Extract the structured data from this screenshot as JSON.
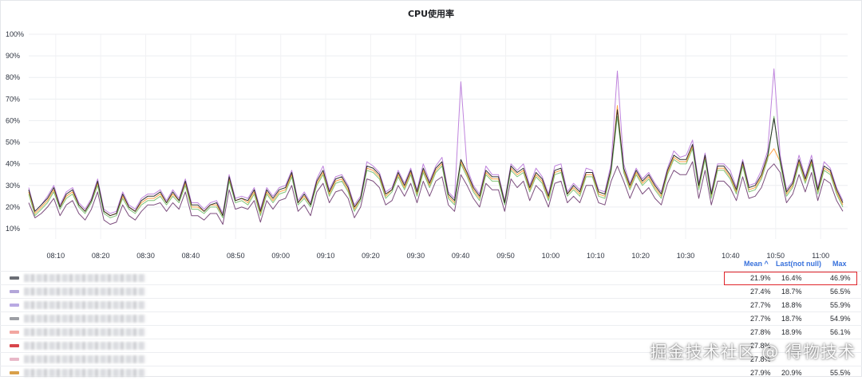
{
  "chart_data": {
    "type": "line",
    "title": "CPU使用率",
    "ylim": [
      8,
      100
    ],
    "yticks": [
      "10%",
      "20%",
      "30%",
      "40%",
      "50%",
      "60%",
      "70%",
      "80%",
      "90%",
      "100%"
    ],
    "yticks_values": [
      10,
      20,
      30,
      40,
      50,
      60,
      70,
      80,
      90,
      100
    ],
    "x_range": [
      "08:04",
      "11:06"
    ],
    "xticks": [
      "08:10",
      "08:20",
      "08:30",
      "08:40",
      "08:50",
      "09:00",
      "09:10",
      "09:20",
      "09:30",
      "09:40",
      "09:50",
      "10:00",
      "10:10",
      "10:20",
      "10:30",
      "10:40",
      "10:50",
      "11:00"
    ],
    "grid": true,
    "legend_placement": "bottom",
    "series_colors": [
      "#73bf69",
      "#5794f2",
      "#b877d9",
      "#ff9830",
      "#f2cc0c",
      "#8ab8ff",
      "#fade2a",
      "#37872d",
      "#c4162a",
      "#e0752d",
      "#1f60c4",
      "#8f3bb8",
      "#fa6400",
      "#a16d52",
      "#6e3b70",
      "#1e1e1e"
    ],
    "series": [
      {
        "color": "#6e3b70",
        "values": [
          22,
          15,
          17,
          20,
          24,
          16,
          21,
          23,
          17,
          14,
          19,
          27,
          14,
          12,
          13,
          21,
          16,
          14,
          18,
          21,
          21,
          22,
          18,
          22,
          19,
          27,
          16,
          16,
          14,
          17,
          17,
          12,
          28,
          19,
          20,
          19,
          23,
          13,
          23,
          19,
          23,
          24,
          30,
          18,
          21,
          16,
          27,
          31,
          22,
          27,
          28,
          24,
          15,
          20,
          33,
          32,
          29,
          21,
          23,
          30,
          25,
          31,
          22,
          32,
          25,
          32,
          34,
          21,
          18,
          35,
          30,
          24,
          20,
          31,
          28,
          28,
          18,
          33,
          29,
          32,
          23,
          30,
          27,
          20,
          31,
          32,
          22,
          25,
          22,
          30,
          30,
          22,
          21,
          32,
          39,
          32,
          24,
          31,
          26,
          29,
          24,
          21,
          31,
          37,
          35,
          35,
          41,
          24,
          37,
          21,
          32,
          32,
          29,
          23,
          34,
          24,
          25,
          29,
          37,
          40,
          36,
          22,
          26,
          35,
          27,
          36,
          23,
          33,
          31,
          23,
          18
        ]
      },
      {
        "color": "#b877d9",
        "values": [
          29,
          18,
          21,
          25,
          30,
          21,
          27,
          29,
          22,
          19,
          24,
          33,
          19,
          17,
          18,
          27,
          21,
          19,
          24,
          26,
          26,
          28,
          23,
          28,
          24,
          33,
          22,
          22,
          19,
          22,
          23,
          17,
          35,
          24,
          25,
          24,
          29,
          19,
          29,
          25,
          29,
          30,
          37,
          23,
          27,
          22,
          33,
          39,
          28,
          34,
          35,
          30,
          21,
          25,
          41,
          39,
          36,
          27,
          29,
          37,
          31,
          38,
          28,
          40,
          32,
          39,
          43,
          27,
          24,
          78,
          38,
          30,
          26,
          39,
          35,
          35,
          23,
          40,
          37,
          40,
          30,
          38,
          34,
          26,
          39,
          40,
          27,
          31,
          28,
          38,
          37,
          28,
          27,
          40,
          83,
          40,
          31,
          38,
          33,
          36,
          31,
          27,
          38,
          46,
          43,
          44,
          51,
          31,
          45,
          27,
          40,
          40,
          37,
          29,
          42,
          30,
          31,
          37,
          46,
          84,
          44,
          28,
          32,
          44,
          34,
          44,
          29,
          41,
          38,
          29,
          23
        ]
      },
      {
        "color": "#ff9830",
        "values": [
          27,
          17,
          20,
          23,
          28,
          20,
          25,
          27,
          21,
          18,
          23,
          31,
          18,
          16,
          17,
          25,
          20,
          18,
          22,
          24,
          24,
          26,
          22,
          26,
          23,
          31,
          20,
          20,
          18,
          21,
          21,
          16,
          33,
          23,
          24,
          22,
          27,
          17,
          27,
          23,
          27,
          28,
          35,
          22,
          25,
          21,
          31,
          36,
          26,
          32,
          33,
          28,
          19,
          24,
          38,
          37,
          34,
          25,
          28,
          35,
          29,
          36,
          26,
          37,
          30,
          37,
          40,
          25,
          22,
          41,
          35,
          28,
          24,
          36,
          33,
          33,
          22,
          38,
          35,
          37,
          28,
          35,
          32,
          24,
          36,
          37,
          26,
          29,
          26,
          35,
          35,
          26,
          25,
          37,
          67,
          37,
          29,
          36,
          31,
          34,
          29,
          25,
          36,
          43,
          41,
          41,
          48,
          29,
          43,
          25,
          38,
          38,
          34,
          27,
          40,
          28,
          29,
          34,
          43,
          47,
          41,
          26,
          30,
          41,
          32,
          41,
          27,
          38,
          36,
          27,
          21
        ]
      },
      {
        "color": "#73bf69",
        "values": [
          26,
          16,
          19,
          22,
          27,
          19,
          24,
          26,
          20,
          17,
          22,
          30,
          17,
          15,
          16,
          24,
          19,
          17,
          21,
          23,
          23,
          25,
          21,
          25,
          22,
          30,
          19,
          19,
          17,
          20,
          20,
          15,
          32,
          22,
          23,
          21,
          26,
          16,
          26,
          22,
          26,
          27,
          34,
          21,
          24,
          20,
          30,
          35,
          25,
          31,
          32,
          27,
          18,
          23,
          37,
          36,
          33,
          24,
          27,
          34,
          28,
          35,
          25,
          36,
          29,
          36,
          39,
          24,
          21,
          40,
          34,
          27,
          23,
          35,
          32,
          32,
          21,
          37,
          34,
          36,
          27,
          34,
          31,
          23,
          35,
          36,
          25,
          28,
          25,
          34,
          34,
          25,
          24,
          36,
          62,
          36,
          28,
          35,
          30,
          33,
          28,
          24,
          35,
          42,
          40,
          40,
          47,
          28,
          42,
          24,
          37,
          37,
          33,
          26,
          39,
          27,
          28,
          33,
          42,
          62,
          40,
          25,
          29,
          40,
          31,
          40,
          26,
          37,
          35,
          26,
          20
        ]
      },
      {
        "color": "#1e1e1e",
        "values": [
          28,
          18,
          21,
          24,
          29,
          20,
          26,
          28,
          21,
          18,
          23,
          32,
          18,
          16,
          17,
          26,
          20,
          18,
          23,
          25,
          25,
          27,
          22,
          27,
          23,
          32,
          21,
          21,
          18,
          21,
          22,
          16,
          34,
          23,
          24,
          23,
          28,
          18,
          28,
          24,
          28,
          29,
          36,
          22,
          26,
          21,
          32,
          37,
          27,
          33,
          34,
          29,
          20,
          24,
          39,
          38,
          35,
          26,
          28,
          36,
          30,
          37,
          27,
          38,
          31,
          38,
          41,
          26,
          23,
          42,
          36,
          29,
          25,
          37,
          34,
          34,
          22,
          39,
          36,
          38,
          29,
          36,
          33,
          25,
          37,
          38,
          26,
          30,
          27,
          36,
          36,
          27,
          26,
          38,
          65,
          38,
          30,
          37,
          32,
          35,
          30,
          26,
          37,
          44,
          42,
          42,
          49,
          30,
          44,
          26,
          39,
          39,
          35,
          28,
          41,
          29,
          30,
          35,
          44,
          61,
          42,
          27,
          31,
          42,
          33,
          42,
          28,
          39,
          37,
          28,
          22
        ]
      }
    ]
  },
  "legend": {
    "headers": {
      "mean": "Mean ^",
      "last": "Last(not null)",
      "max": "Max"
    },
    "rows": [
      {
        "color": "#6b6e75",
        "name": "",
        "mean": "21.9%",
        "last": "16.4%",
        "max": "46.9%"
      },
      {
        "color": "#b3a6d9",
        "name": "",
        "mean": "27.4%",
        "last": "18.7%",
        "max": "56.5%"
      },
      {
        "color": "#b9a9e3",
        "name": "",
        "mean": "27.7%",
        "last": "18.8%",
        "max": "55.9%"
      },
      {
        "color": "#9d9fa5",
        "name": "",
        "mean": "27.7%",
        "last": "18.7%",
        "max": "54.9%"
      },
      {
        "color": "#f2a6a0",
        "name": "",
        "mean": "27.8%",
        "last": "18.9%",
        "max": "56.1%"
      },
      {
        "color": "#d8454b",
        "name": "",
        "mean": "27.8%",
        "last": "",
        "max": ""
      },
      {
        "color": "#e8b8c8",
        "name": "",
        "mean": "27.8%",
        "last": "",
        "max": ""
      },
      {
        "color": "#d9a04a",
        "name": "",
        "mean": "27.9%",
        "last": "20.9%",
        "max": "55.5%"
      }
    ]
  },
  "watermark": "掘金技术社区 @ 得物技术"
}
